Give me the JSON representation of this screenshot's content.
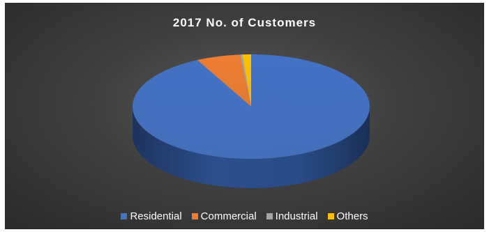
{
  "chart_data": {
    "type": "pie",
    "title": "2017 No. of Customers",
    "style": "3d",
    "legend_position": "bottom",
    "categories": [
      "Residential",
      "Commercial",
      "Industrial",
      "Others"
    ],
    "values": [
      92.5,
      6.0,
      0.3,
      1.2
    ],
    "value_unit": "percent (estimated)",
    "colors": [
      "#4472c4",
      "#ed7d31",
      "#a5a5a5",
      "#ffc000"
    ],
    "side_colors": [
      "#2c4f8e",
      "#b35a1f",
      "#7a7a7a",
      "#bf9000"
    ]
  }
}
